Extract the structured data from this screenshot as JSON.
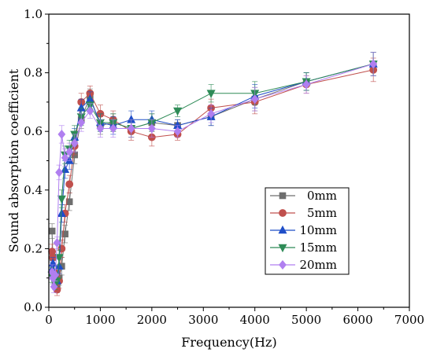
{
  "chart_data": {
    "type": "line",
    "xlabel": "Frequency(Hz)",
    "ylabel": "Sound absorption coefficient",
    "xlim": [
      0,
      7000
    ],
    "ylim": [
      0.0,
      1.0
    ],
    "x_ticks": [
      0,
      1000,
      2000,
      3000,
      4000,
      5000,
      6000,
      7000
    ],
    "y_ticks": [
      "0.0",
      "0.2",
      "0.4",
      "0.6",
      "0.8",
      "1.0"
    ],
    "grid": false,
    "legend_position": "lower-right",
    "x": [
      63,
      80,
      100,
      125,
      160,
      200,
      250,
      315,
      400,
      500,
      630,
      800,
      1000,
      1250,
      1600,
      2000,
      2500,
      3150,
      4000,
      5000,
      6300
    ],
    "series": [
      {
        "name": "0mm",
        "marker": "square",
        "color": "#6e6e6e",
        "values": [
          0.26,
          0.17,
          0.12,
          0.08,
          0.07,
          0.1,
          0.14,
          0.25,
          0.36,
          0.52,
          0.64,
          0.72,
          0.62,
          0.63,
          0.61,
          0.63,
          0.62,
          0.65,
          0.71,
          0.77,
          0.83
        ]
      },
      {
        "name": "5mm",
        "marker": "circle",
        "color": "#c0504d",
        "values": [
          0.19,
          0.17,
          0.12,
          0.09,
          0.06,
          0.09,
          0.2,
          0.32,
          0.42,
          0.55,
          0.7,
          0.73,
          0.66,
          0.64,
          0.6,
          0.58,
          0.59,
          0.68,
          0.7,
          0.76,
          0.81
        ]
      },
      {
        "name": "10mm",
        "marker": "triangle-up",
        "color": "#1f4ec8",
        "values": [
          0.13,
          0.15,
          0.12,
          0.1,
          0.09,
          0.14,
          0.32,
          0.47,
          0.5,
          0.58,
          0.68,
          0.71,
          0.63,
          0.62,
          0.64,
          0.64,
          0.62,
          0.65,
          0.72,
          0.77,
          0.83
        ]
      },
      {
        "name": "15mm",
        "marker": "triangle-down",
        "color": "#2e8b57",
        "values": [
          0.11,
          0.1,
          0.09,
          0.08,
          0.09,
          0.17,
          0.37,
          0.52,
          0.54,
          0.59,
          0.65,
          0.69,
          0.63,
          0.63,
          0.61,
          0.63,
          0.67,
          0.73,
          0.73,
          0.77,
          0.83
        ]
      },
      {
        "name": "20mm",
        "marker": "diamond",
        "color": "#b07ff0",
        "values": [
          0.12,
          0.1,
          0.07,
          0.11,
          0.22,
          0.46,
          0.59,
          0.51,
          0.53,
          0.56,
          0.63,
          0.67,
          0.61,
          0.61,
          0.61,
          0.61,
          0.6,
          0.66,
          0.71,
          0.76,
          0.83
        ]
      }
    ],
    "error": [
      0.025,
      0.02,
      0.02,
      0.02,
      0.02,
      0.025,
      0.03,
      0.03,
      0.03,
      0.03,
      0.03,
      0.025,
      0.03,
      0.03,
      0.03,
      0.03,
      0.02,
      0.03,
      0.04,
      0.03,
      0.04
    ]
  }
}
